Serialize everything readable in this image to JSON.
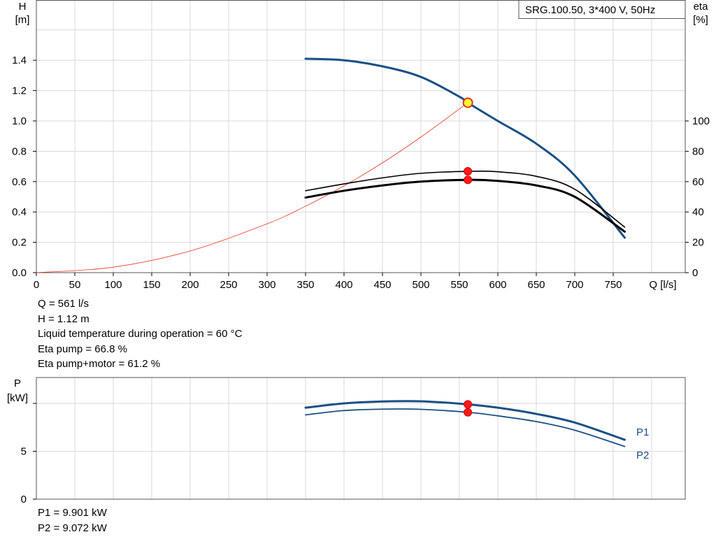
{
  "chart_data": [
    {
      "type": "line",
      "title": "SRG.100.50, 3*400 V, 50Hz",
      "xlabel": "Q [l/s]",
      "x_ticks": [
        0,
        50,
        100,
        150,
        200,
        250,
        300,
        350,
        400,
        450,
        500,
        550,
        600,
        650,
        700,
        750
      ],
      "xlim": [
        0,
        840
      ],
      "y_left": {
        "label_line1": "H",
        "label_line2": "[m]",
        "ylim": [
          0,
          1.8
        ],
        "ticks": [
          "0.0",
          "0.2",
          "0.4",
          "0.6",
          "0.8",
          "1.0",
          "1.2",
          "1.4"
        ]
      },
      "y_right": {
        "label_line1": "eta",
        "label_line2": "[%]",
        "ylim": [
          0,
          100
        ],
        "ticks": [
          "0",
          "20",
          "40",
          "60",
          "80",
          "100"
        ]
      },
      "grid": true,
      "series": [
        {
          "axis": "left",
          "color": "#1b4f86",
          "x": [
            350,
            400,
            450,
            500,
            550,
            561,
            600,
            650,
            700,
            765
          ],
          "y": [
            1.41,
            1.4,
            1.36,
            1.29,
            1.16,
            1.12,
            1.0,
            0.85,
            0.64,
            0.23
          ]
        },
        {
          "axis": "left",
          "color": "#ee3322",
          "x": [
            0,
            100,
            200,
            300,
            350,
            400,
            450,
            500,
            561
          ],
          "y": [
            0.0,
            0.036,
            0.143,
            0.322,
            0.438,
            0.572,
            0.724,
            0.894,
            1.12
          ]
        },
        {
          "axis": "right",
          "color": "#000000",
          "x": [
            350,
            400,
            450,
            500,
            561,
            600,
            650,
            700,
            765
          ],
          "y": [
            54,
            58.5,
            62.5,
            65.5,
            66.8,
            66.5,
            63.5,
            55,
            30
          ]
        },
        {
          "axis": "right",
          "color": "#000000",
          "x": [
            350,
            400,
            450,
            500,
            561,
            600,
            650,
            700,
            765
          ],
          "y": [
            49.5,
            54,
            57.5,
            60,
            61.2,
            60.5,
            57.5,
            50,
            27
          ]
        }
      ],
      "duty_point": {
        "Q": 561,
        "H": 1.12,
        "eta_pump": 66.8,
        "eta_total": 61.2
      }
    },
    {
      "type": "line",
      "xlim": [
        0,
        840
      ],
      "y_left": {
        "label_line1": "P",
        "label_line2": "[kW]",
        "ylim": [
          0,
          12
        ],
        "ticks": [
          "0",
          "5"
        ]
      },
      "grid": true,
      "series": [
        {
          "name": "P1",
          "color": "#1b4f86",
          "x": [
            350,
            400,
            450,
            500,
            561,
            600,
            650,
            700,
            765
          ],
          "y": [
            9.55,
            10.0,
            10.2,
            10.22,
            9.9,
            9.55,
            8.9,
            8.0,
            6.2
          ]
        },
        {
          "name": "P2",
          "color": "#1b4f86",
          "x": [
            350,
            400,
            450,
            500,
            561,
            600,
            650,
            700,
            765
          ],
          "y": [
            8.8,
            9.25,
            9.4,
            9.38,
            9.07,
            8.7,
            8.1,
            7.2,
            5.5
          ]
        }
      ]
    }
  ],
  "info_lines": {
    "q": "Q = 561 l/s",
    "h": "H = 1.12 m",
    "temp": "Liquid temperature during operation = 60 °C",
    "eta_pump": "Eta pump = 66.8 %",
    "eta_total": "Eta pump+motor = 61.2 %",
    "p1": "P1 = 9.901 kW",
    "p2": "P2 = 9.072 kW"
  }
}
